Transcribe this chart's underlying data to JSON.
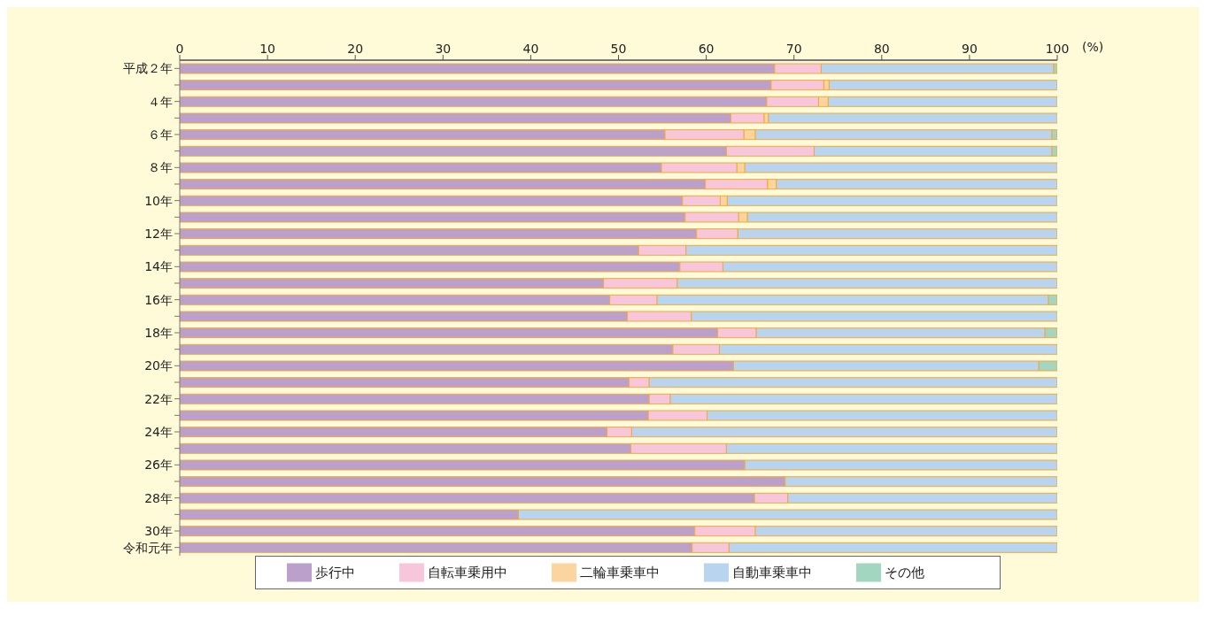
{
  "chart_data": {
    "type": "bar",
    "orientation": "horizontal",
    "stacked": true,
    "xlabel": "(%)",
    "categories": [
      "平成２年",
      null,
      "４年",
      null,
      "６年",
      null,
      "８年",
      null,
      "10年",
      null,
      "12年",
      null,
      "14年",
      null,
      "16年",
      null,
      "18年",
      null,
      "20年",
      null,
      "22年",
      null,
      "24年",
      null,
      "26年",
      null,
      "28年",
      null,
      "30年",
      "令和元年"
    ],
    "series": [
      {
        "name": "歩行中",
        "color": "#bca0cc",
        "values": [
          67.8,
          67.4,
          66.9,
          62.8,
          55.3,
          62.3,
          54.9,
          59.9,
          57.3,
          57.6,
          58.9,
          52.3,
          57.0,
          48.3,
          49.0,
          51.0,
          61.3,
          56.2,
          63.1,
          51.2,
          53.5,
          53.4,
          48.7,
          51.4,
          64.4,
          69.0,
          65.5,
          38.6,
          58.7,
          58.4
        ]
      },
      {
        "name": "自転車乗用中",
        "color": "#f7c6da",
        "values": [
          5.3,
          6.0,
          5.9,
          3.8,
          9.0,
          10.0,
          8.6,
          7.1,
          4.3,
          6.1,
          4.7,
          5.4,
          4.9,
          8.4,
          5.4,
          7.3,
          4.4,
          5.3,
          0,
          2.3,
          2.4,
          6.7,
          2.8,
          10.9,
          0,
          0,
          3.8,
          0,
          6.9,
          4.2
        ]
      },
      {
        "name": "二輪車乗車中",
        "color": "#fcd59e",
        "values": [
          0,
          0.6,
          1.1,
          0.5,
          1.3,
          0,
          0.9,
          1.0,
          0.8,
          1.0,
          0,
          0,
          0,
          0,
          0,
          0,
          0,
          0,
          0,
          0,
          0,
          0,
          0,
          0,
          0,
          0,
          0,
          0,
          0,
          0
        ]
      },
      {
        "name": "自動車乗車中",
        "color": "#b8d4ee",
        "values": [
          26.5,
          26.0,
          26.1,
          32.9,
          33.8,
          27.1,
          35.6,
          32.0,
          37.6,
          35.3,
          36.4,
          42.3,
          38.1,
          43.3,
          44.6,
          41.7,
          32.9,
          38.5,
          34.8,
          46.5,
          44.1,
          39.9,
          48.5,
          37.7,
          35.6,
          31.0,
          30.7,
          61.4,
          34.4,
          37.4
        ]
      },
      {
        "name": "その他",
        "color": "#a3d6c0",
        "values": [
          0.4,
          0,
          0,
          0,
          0.6,
          0.6,
          0,
          0,
          0,
          0,
          0,
          0,
          0,
          0,
          1.0,
          0,
          1.4,
          0,
          2.1,
          0,
          0,
          0,
          0,
          0,
          0,
          0,
          0,
          0,
          0,
          0
        ]
      }
    ],
    "xlim": [
      0,
      100
    ],
    "xticks": [
      0,
      10,
      20,
      30,
      40,
      50,
      60,
      70,
      80,
      90,
      100
    ],
    "legend": "bottom"
  }
}
